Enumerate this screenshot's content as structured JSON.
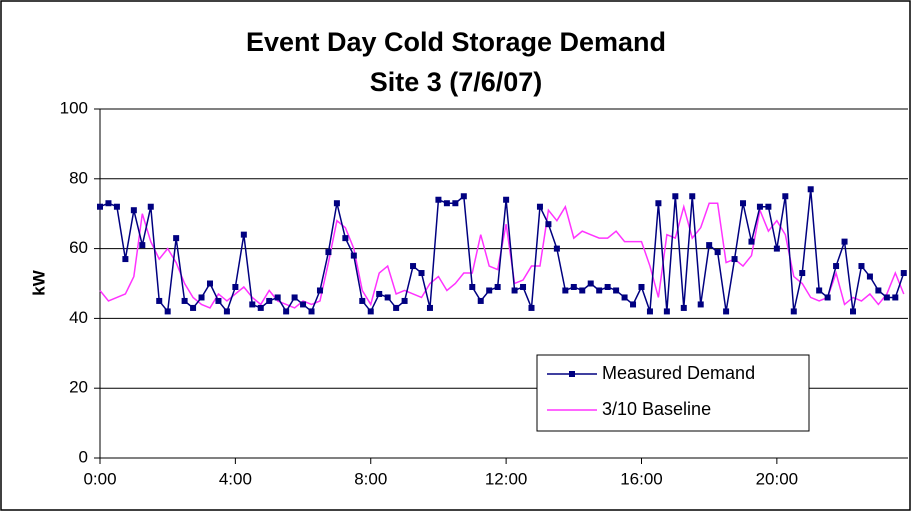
{
  "chart_data": {
    "type": "line",
    "title": "Event Day Cold Storage Demand",
    "subtitle": "Site 3 (7/6/07)",
    "y_label": "kW",
    "categories": [
      "0:00",
      null,
      null,
      null,
      null,
      null,
      null,
      null,
      null,
      null,
      null,
      null,
      null,
      null,
      null,
      null,
      "4:00",
      null,
      null,
      null,
      null,
      null,
      null,
      null,
      null,
      null,
      null,
      null,
      null,
      null,
      null,
      null,
      "8:00",
      null,
      null,
      null,
      null,
      null,
      null,
      null,
      null,
      null,
      null,
      null,
      null,
      null,
      null,
      null,
      "12:00",
      null,
      null,
      null,
      null,
      null,
      null,
      null,
      null,
      null,
      null,
      null,
      null,
      null,
      null,
      null,
      "16:00",
      null,
      null,
      null,
      null,
      null,
      null,
      null,
      null,
      null,
      null,
      null,
      null,
      null,
      null,
      null,
      "20:00",
      null,
      null,
      null,
      null,
      null,
      null,
      null,
      null,
      null,
      null,
      null,
      null,
      null,
      null,
      null
    ],
    "series": [
      {
        "name": "Measured Demand",
        "color": "#000080",
        "marker": "square",
        "values": [
          72,
          73,
          72,
          57,
          71,
          61,
          72,
          45,
          42,
          63,
          45,
          43,
          46,
          50,
          45,
          42,
          49,
          64,
          44,
          43,
          45,
          46,
          42,
          46,
          44,
          42,
          48,
          59,
          73,
          63,
          58,
          45,
          42,
          47,
          46,
          43,
          45,
          55,
          53,
          43,
          74,
          73,
          73,
          75,
          49,
          45,
          48,
          49,
          74,
          48,
          49,
          43,
          72,
          67,
          60,
          48,
          49,
          48,
          50,
          48,
          49,
          48,
          46,
          44,
          49,
          42,
          73,
          42,
          75,
          43,
          75,
          44,
          61,
          59,
          42,
          57,
          73,
          62,
          72,
          72,
          60,
          75,
          42,
          53,
          77,
          48,
          46,
          55,
          62,
          42,
          55,
          52,
          48,
          46,
          46,
          53
        ]
      },
      {
        "name": "3/10 Baseline",
        "color": "#ff33ff",
        "marker": "none",
        "values": [
          48,
          45,
          46,
          47,
          52,
          70,
          62,
          57,
          60,
          56,
          50,
          46,
          44,
          43,
          47,
          45,
          47,
          49,
          46,
          44,
          48,
          45,
          44,
          43,
          45,
          44,
          45,
          56,
          68,
          66,
          60,
          48,
          44,
          53,
          55,
          47,
          48,
          47,
          46,
          50,
          52,
          48,
          50,
          53,
          53,
          64,
          55,
          54,
          67,
          50,
          51,
          55,
          55,
          71,
          68,
          72,
          63,
          65,
          64,
          63,
          63,
          65,
          62,
          62,
          62,
          55,
          46,
          64,
          63,
          72,
          63,
          66,
          73,
          73,
          56,
          57,
          55,
          58,
          71,
          65,
          68,
          64,
          52,
          50,
          46,
          45,
          46,
          53,
          44,
          46,
          45,
          47,
          44,
          47,
          53,
          47
        ]
      }
    ],
    "ylim": [
      0,
      100
    ],
    "yticks": [
      0,
      20,
      40,
      60,
      80,
      100
    ],
    "grid": true
  }
}
